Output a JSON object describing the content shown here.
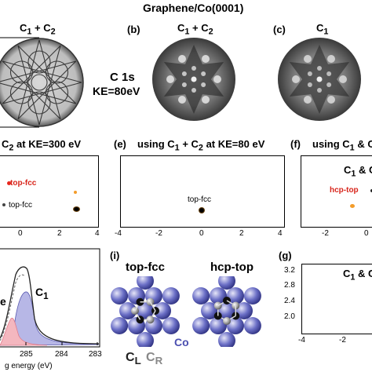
{
  "figure_title": "Graphene/Co(0001)",
  "top_row": {
    "a_title_html": "C<sub>1</sub> + C<sub>2</sub>",
    "b_label": "(b)",
    "b_title_html": "C<sub>1</sub> + C<sub>2</sub>",
    "c_label": "(c)",
    "c_title_html": "C<sub>1</sub>",
    "core_level": "C 1s",
    "kinetic_energy": "KE=80eV"
  },
  "middle_row": {
    "d_title_html": "C<sub>2</sub> at KE=300 eV",
    "e_label": "(e)",
    "e_title_html": "using C<sub>1</sub> + C<sub>2</sub> at KE=80 eV",
    "f_label": "(f)",
    "f_title_html": "using C<sub>1</sub> &amp; C",
    "d_annot_topfcc_red": "top-fcc",
    "d_annot_topfcc": "top-fcc",
    "d_xticks": [
      "0",
      "2",
      "4"
    ],
    "e_annot": "top-fcc",
    "e_xticks": [
      "-4",
      "-2",
      "0",
      "2",
      "4"
    ],
    "f_inner_title_html": "C<sub>1</sub> &amp; C",
    "f_annot": "hcp-top",
    "f_xticks": [
      "-2",
      "0"
    ]
  },
  "bottom_row": {
    "h_label_c1_html": "C<sub>1</sub>",
    "h_label_e": "e",
    "h_xticks": [
      "285",
      "284",
      "283"
    ],
    "h_xlabel": "g energy (eV)",
    "i_label": "(i)",
    "i_left_title": "top-fcc",
    "i_right_title": "hcp-top",
    "i_co": "Co",
    "i_cl_html": "C<sub>L</sub>",
    "i_cr_html": "C<sub>R</sub>",
    "g_label": "(g)",
    "g_inner_title_html": "C<sub>1</sub> &amp; C",
    "g_yticks": [
      "3.2",
      "2.8",
      "2.4",
      "2.0"
    ],
    "g_xticks": [
      "-4",
      "-2"
    ]
  },
  "colors": {
    "spot_red": "#e8261c",
    "spot_orange": "#f39c2a",
    "co_atom": "#4b4fb0",
    "carbon_atom": "#8a8a8a",
    "spectrum_fill_red": "#f4b7bf",
    "spectrum_fill_blue": "#b7b7e6"
  }
}
